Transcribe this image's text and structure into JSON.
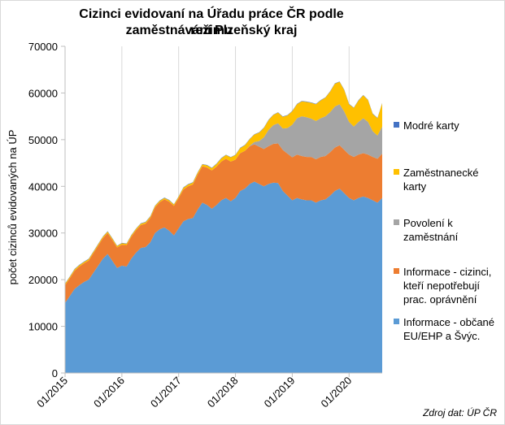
{
  "chart_data": {
    "type": "area",
    "stacked": true,
    "title_line1": "Cizinci evidovaní na Úřadu práce ČR podle režimu",
    "title_line2": "zaměstnávání Plzeňský kraj",
    "ylabel": "počet cizinců evidovaných na ÚP",
    "xlabel": "",
    "ylim": [
      0,
      70000
    ],
    "yticks": [
      0,
      10000,
      20000,
      30000,
      40000,
      50000,
      60000,
      70000
    ],
    "ytick_labels": [
      "0",
      "10000",
      "20000",
      "30000",
      "40000",
      "50000",
      "60000",
      "70000"
    ],
    "x_start": "2015-01",
    "x_end": "2020-08",
    "xticks": [
      "01/2015",
      "01/2016",
      "01/2017",
      "01/2018",
      "01/2019",
      "01/2020"
    ],
    "grid": "vertical",
    "legend_position": "right",
    "series": [
      {
        "name": "Informace - občané EU/EHP a Švýc.",
        "color": "#5b9bd5",
        "values": [
          15000,
          16500,
          18000,
          18800,
          19500,
          20000,
          21500,
          23000,
          24500,
          25500,
          24000,
          22500,
          23000,
          22800,
          24500,
          25800,
          26800,
          27000,
          28000,
          30000,
          30800,
          31200,
          30500,
          29500,
          31000,
          32500,
          33000,
          33200,
          35000,
          36500,
          36000,
          35200,
          36000,
          37000,
          37500,
          36800,
          37500,
          39000,
          39500,
          40500,
          41000,
          40500,
          40000,
          40500,
          40800,
          40700,
          39000,
          38000,
          37000,
          37500,
          37200,
          37000,
          37000,
          36500,
          37000,
          37200,
          38000,
          39000,
          39500,
          38500,
          37500,
          37000,
          37500,
          37800,
          37500,
          37000,
          36500,
          37500
        ]
      },
      {
        "name": "Informace - cizinci, kteří nepotřebují prac. oprávnění",
        "color": "#ed7d31",
        "values": [
          3800,
          3800,
          3900,
          4000,
          4000,
          4100,
          4200,
          4300,
          4400,
          4500,
          4500,
          4400,
          4500,
          4600,
          4700,
          4800,
          4900,
          5000,
          5200,
          5500,
          5800,
          6000,
          6200,
          6300,
          6500,
          6800,
          7000,
          7200,
          7500,
          7800,
          8000,
          8200,
          8200,
          8300,
          8400,
          8500,
          8200,
          8100,
          8100,
          8100,
          8000,
          8000,
          8000,
          8100,
          8300,
          8500,
          8800,
          9000,
          9200,
          9300,
          9300,
          9300,
          9300,
          9300,
          9300,
          9300,
          9300,
          9300,
          9300,
          9300,
          9300,
          9300,
          9300,
          9300,
          9300,
          9300,
          9400,
          9500
        ]
      },
      {
        "name": "Povolení k zaměstnání",
        "color": "#a5a5a5",
        "values": [
          0,
          0,
          0,
          0,
          0,
          0,
          0,
          0,
          0,
          0,
          0,
          0,
          0,
          0,
          0,
          0,
          0,
          0,
          0,
          0,
          0,
          0,
          0,
          0,
          0,
          0,
          0,
          0,
          0,
          0,
          0,
          0,
          0,
          0,
          0,
          0,
          0,
          0,
          0,
          100,
          500,
          1200,
          2500,
          3500,
          4000,
          4300,
          4600,
          5500,
          7000,
          7800,
          8500,
          8500,
          8200,
          8200,
          8300,
          8500,
          8600,
          8800,
          8800,
          8200,
          7000,
          6500,
          7000,
          7500,
          7000,
          5500,
          5000,
          5800
        ]
      },
      {
        "name": "Zaměstnanecké karty",
        "color": "#ffc000",
        "values": [
          300,
          300,
          300,
          300,
          300,
          300,
          300,
          300,
          300,
          300,
          300,
          300,
          300,
          300,
          300,
          300,
          300,
          300,
          300,
          300,
          300,
          300,
          300,
          300,
          300,
          400,
          400,
          400,
          400,
          400,
          500,
          500,
          600,
          700,
          800,
          900,
          1000,
          1100,
          1200,
          1400,
          1600,
          1800,
          2000,
          2100,
          2200,
          2300,
          2500,
          2700,
          2900,
          3000,
          3200,
          3300,
          3400,
          3600,
          3800,
          4000,
          4400,
          4900,
          4800,
          4600,
          3800,
          4000,
          4600,
          4900,
          4700,
          3700,
          3700,
          5000
        ]
      },
      {
        "name": "Modré karty",
        "color": "#4472c4",
        "values": [
          80,
          80,
          80,
          80,
          80,
          80,
          80,
          80,
          80,
          80,
          80,
          80,
          80,
          80,
          80,
          80,
          80,
          80,
          80,
          80,
          80,
          80,
          80,
          80,
          80,
          80,
          80,
          80,
          80,
          80,
          80,
          80,
          80,
          80,
          80,
          80,
          80,
          80,
          80,
          80,
          80,
          80,
          80,
          80,
          80,
          80,
          80,
          80,
          80,
          80,
          80,
          80,
          80,
          80,
          80,
          80,
          80,
          80,
          80,
          80,
          80,
          80,
          80,
          80,
          80,
          80,
          80,
          80
        ]
      }
    ],
    "legend_order": [
      "Modré karty",
      "Zaměstnanecké karty",
      "Povolení k zaměstnání",
      "Informace - cizinci, kteří nepotřebují prac. oprávnění",
      "Informace - občané EU/EHP a Švýc."
    ],
    "legend_lines": [
      [
        "Modré karty"
      ],
      [
        "Zaměstnanecké",
        "karty"
      ],
      [
        "Povolení k",
        "zaměstnání"
      ],
      [
        "Informace - cizinci,",
        "kteří nepotřebují",
        "prac. oprávnění"
      ],
      [
        "Informace - občané",
        "EU/EHP a Švýc."
      ]
    ],
    "source": "Zdroj dat: ÚP ČR"
  }
}
